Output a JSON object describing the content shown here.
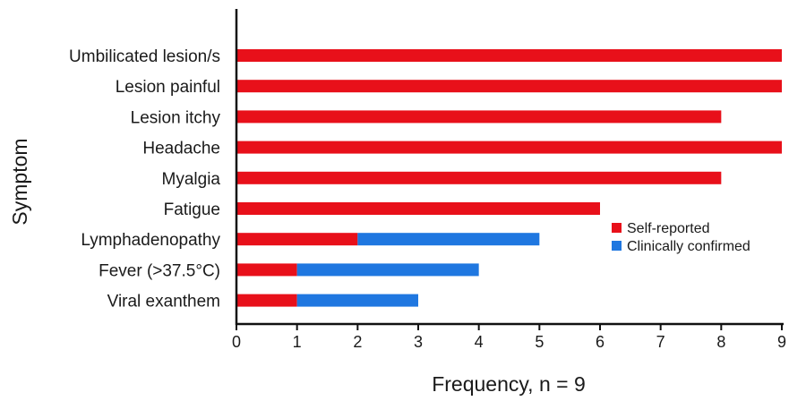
{
  "chart_data": {
    "type": "bar",
    "orientation": "horizontal",
    "stacked": true,
    "categories": [
      "Umbilicated lesion/s",
      "Lesion painful",
      "Lesion itchy",
      "Headache",
      "Myalgia",
      "Fatigue",
      "Lymphadenopathy",
      "Fever (>37.5°C)",
      "Viral exanthem"
    ],
    "series": [
      {
        "name": "Self-reported",
        "color": "#e8101a",
        "values": [
          9,
          9,
          8,
          9,
          8,
          6,
          2,
          1,
          1
        ]
      },
      {
        "name": "Clinically confirmed",
        "color": "#1f77e0",
        "values": [
          0,
          0,
          0,
          0,
          0,
          0,
          3,
          3,
          2
        ]
      }
    ],
    "xlabel": "Frequency, n = 9",
    "ylabel": "Symptom",
    "xlim": [
      0,
      9
    ],
    "xticks": [
      "0",
      "1",
      "2",
      "3",
      "4",
      "5",
      "6",
      "7",
      "8",
      "9"
    ],
    "grid": false,
    "legend_position": "right"
  }
}
